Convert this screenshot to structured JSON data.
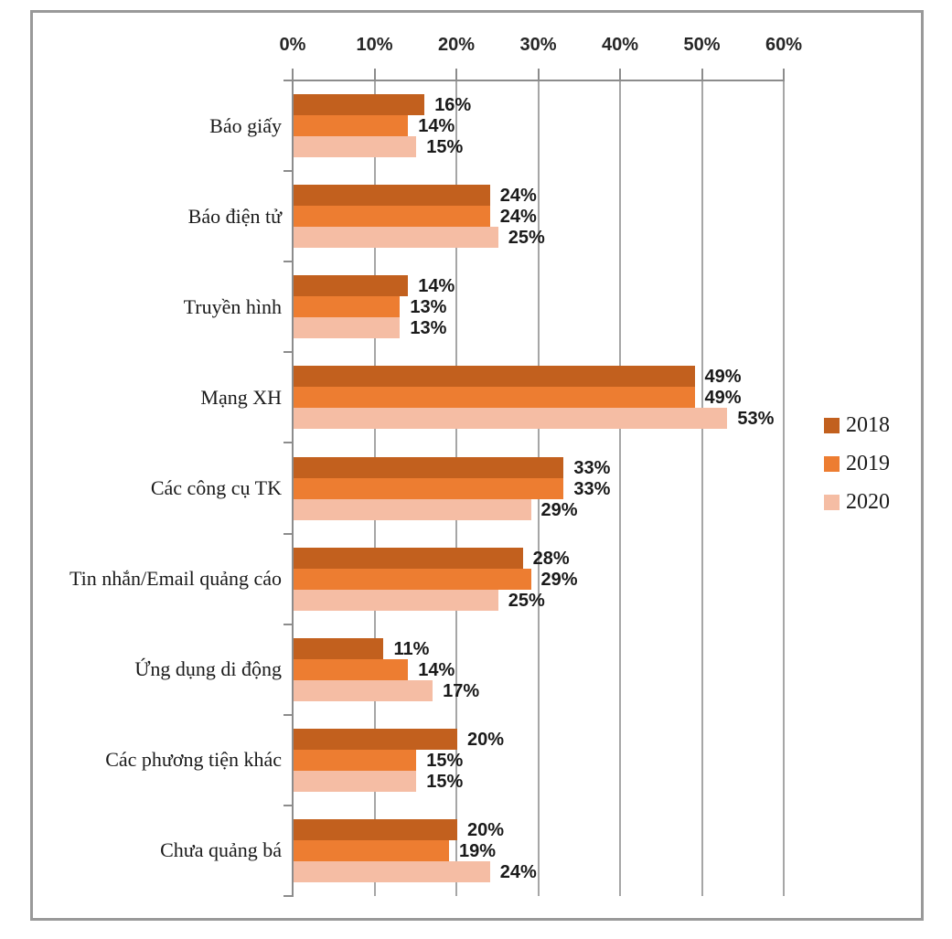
{
  "chart_data": {
    "type": "bar",
    "orientation": "horizontal",
    "title": "",
    "categories": [
      "Báo giấy",
      "Báo điện tử",
      "Truyền hình",
      "Mạng XH",
      "Các công cụ TK",
      "Tin nhắn/Email quảng cáo",
      "Ứng dụng di động",
      "Các phương tiện khác",
      "Chưa quảng bá"
    ],
    "series": [
      {
        "name": "2018",
        "color": "#C2601E",
        "values": [
          16,
          24,
          14,
          49,
          33,
          28,
          11,
          20,
          20
        ]
      },
      {
        "name": "2019",
        "color": "#ED7D31",
        "values": [
          14,
          24,
          13,
          49,
          33,
          29,
          14,
          15,
          19
        ]
      },
      {
        "name": "2020",
        "color": "#F5BDA4",
        "values": [
          15,
          25,
          13,
          53,
          29,
          25,
          17,
          15,
          24
        ]
      }
    ],
    "data_labels": true,
    "value_suffix": "%",
    "x_axis": {
      "position": "top",
      "min": 0,
      "max": 60,
      "tick_step": 10,
      "ticks": [
        "0%",
        "10%",
        "20%",
        "30%",
        "40%",
        "50%",
        "60%"
      ]
    },
    "grid": true,
    "legend_position": "right"
  },
  "colors": {
    "axis_line": "#8C8C8C",
    "gridline": "#A6A6A6",
    "label_text": "#1A1A1A",
    "frame_border": "#999999",
    "background": "#FFFFFF"
  }
}
